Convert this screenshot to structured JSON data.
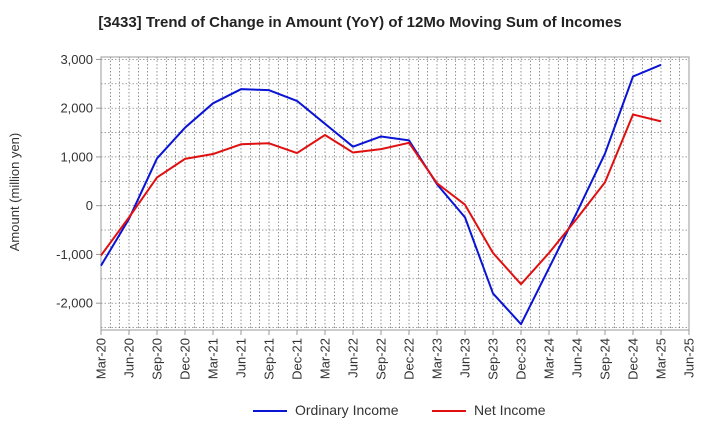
{
  "chart_data": {
    "type": "line",
    "title": "[3433]  Trend of Change in Amount (YoY) of 12Mo Moving Sum of Incomes",
    "xlabel": "",
    "ylabel": "Amount (million yen)",
    "ylim": [
      -2550,
      3050
    ],
    "yticks": [
      3000,
      2000,
      1000,
      0,
      -1000,
      -2000
    ],
    "ytick_labels": [
      "3,000",
      "2,000",
      "1,000",
      "0",
      "-1,000",
      "-2,000"
    ],
    "categories": [
      "Mar-20",
      "Jun-20",
      "Sep-20",
      "Dec-20",
      "Mar-21",
      "Jun-21",
      "Sep-21",
      "Dec-21",
      "Mar-22",
      "Jun-22",
      "Sep-22",
      "Dec-22",
      "Mar-23",
      "Jun-23",
      "Sep-23",
      "Dec-23",
      "Mar-24",
      "Jun-24",
      "Sep-24",
      "Dec-24",
      "Mar-25",
      "Jun-25"
    ],
    "grid": true,
    "legend_position": "bottom",
    "series": [
      {
        "name": "Ordinary Income",
        "color": "#0a14d4",
        "values": [
          -1230,
          -270,
          970,
          1600,
          2100,
          2390,
          2370,
          2150,
          1680,
          1210,
          1420,
          1340,
          440,
          -240,
          -1800,
          -2430,
          -1280,
          -130,
          1070,
          2650,
          2890,
          null
        ]
      },
      {
        "name": "Net Income",
        "color": "#e01010",
        "values": [
          -1020,
          -240,
          580,
          960,
          1060,
          1260,
          1280,
          1080,
          1450,
          1090,
          1160,
          1290,
          460,
          20,
          -970,
          -1610,
          -970,
          -260,
          480,
          1870,
          1730,
          null
        ]
      }
    ]
  }
}
